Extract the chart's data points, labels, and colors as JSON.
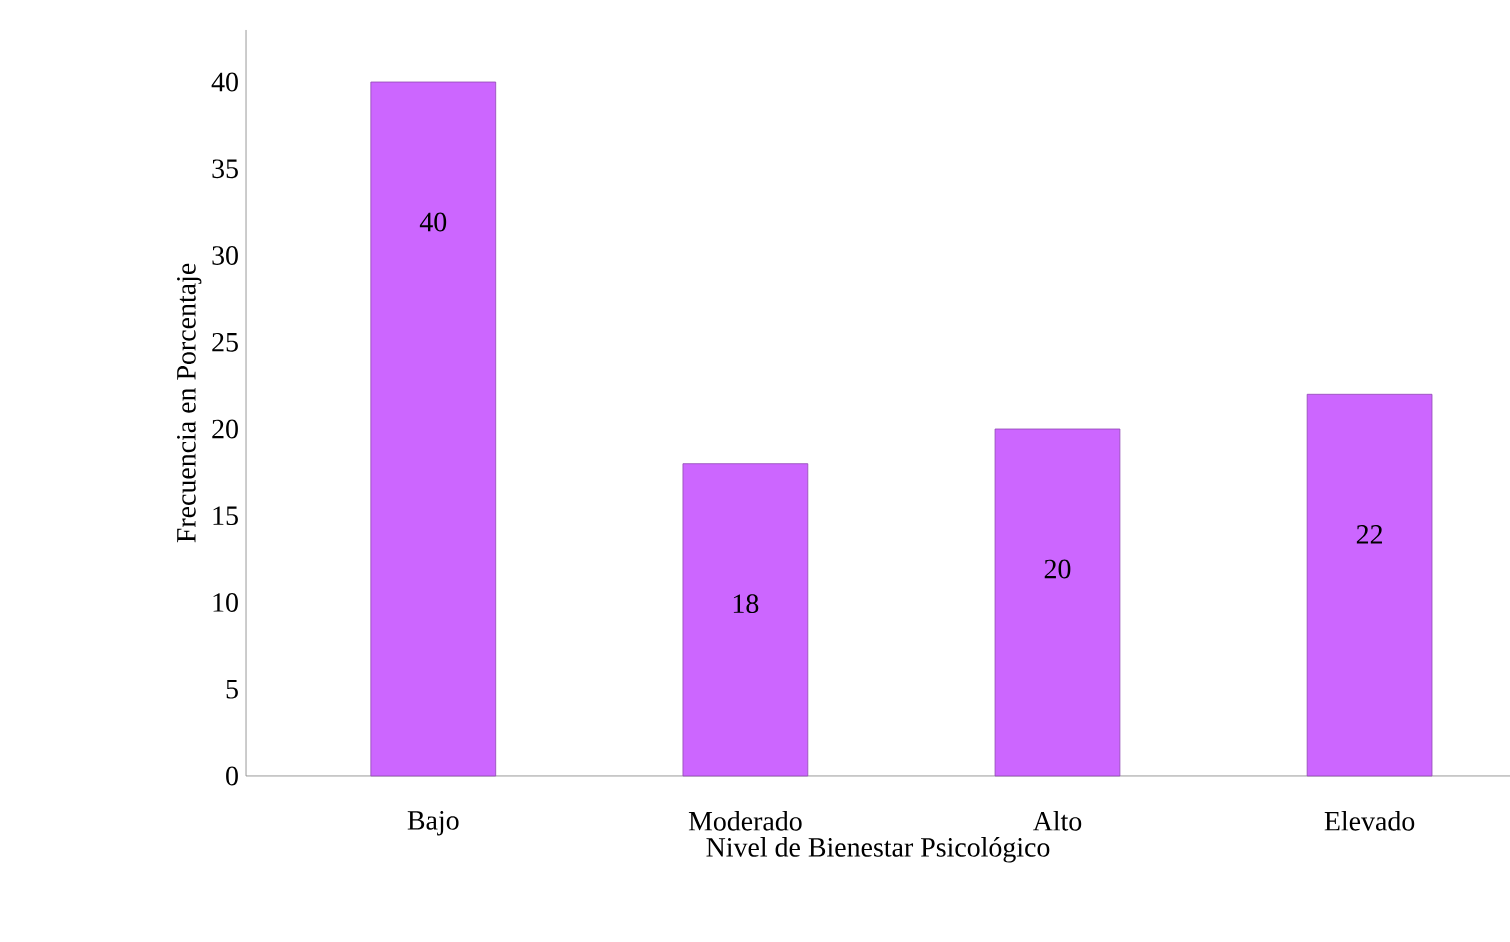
{
  "chart_data": {
    "type": "bar",
    "xlabel": "Nivel  de Bienestar  Psicológico",
    "ylabel": "Frecuencia  en  Porcentaje",
    "categories": [
      "Bajo",
      "Moderado",
      "Alto",
      "Elevado"
    ],
    "values": [
      40,
      18,
      20,
      22
    ],
    "color": "#cc66ff",
    "data_labels": true,
    "ylim": [
      0,
      43
    ],
    "yticks": [
      0,
      5,
      10,
      15,
      20,
      25,
      30,
      35,
      40
    ]
  }
}
